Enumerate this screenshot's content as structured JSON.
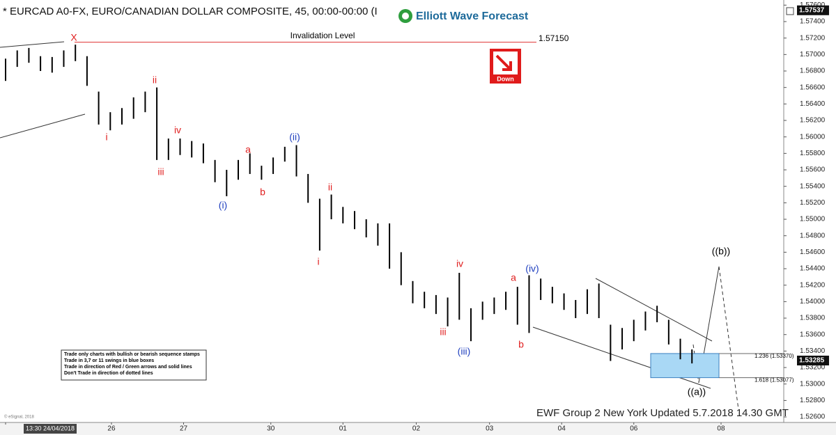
{
  "header": {
    "title": "* EURCAD A0-FX, EURO/CANADIAN DOLLAR COMPOSITE, 45, 00:00-00:00 (I",
    "logo": "Elliott Wave Forecast"
  },
  "chart_data": {
    "type": "hilo",
    "color": "#000000",
    "x": [
      0,
      1,
      2,
      3,
      4,
      5,
      6,
      7,
      8,
      9,
      10,
      11,
      12,
      13,
      14,
      15,
      16,
      17,
      18,
      19,
      20,
      21,
      22,
      23,
      24,
      25,
      26,
      27,
      28,
      29,
      30,
      31,
      32,
      33,
      34,
      35,
      36,
      37,
      38,
      39,
      40,
      41,
      42,
      43,
      44,
      45,
      46,
      47,
      48,
      49,
      50,
      51,
      52,
      53,
      54,
      55,
      56,
      57,
      58,
      59
    ],
    "high": [
      1.5695,
      1.5705,
      1.5708,
      1.5698,
      1.5697,
      1.5705,
      1.5712,
      1.5698,
      1.5655,
      1.563,
      1.5635,
      1.5648,
      1.5655,
      1.566,
      1.5598,
      1.5598,
      1.5595,
      1.5592,
      1.5572,
      1.556,
      1.5572,
      1.558,
      1.5565,
      1.5575,
      1.5588,
      1.559,
      1.5555,
      1.5525,
      1.553,
      1.5515,
      1.551,
      1.55,
      1.5495,
      1.5495,
      1.546,
      1.5425,
      1.5412,
      1.5408,
      1.5405,
      1.5435,
      1.5392,
      1.54,
      1.5405,
      1.5412,
      1.5418,
      1.5432,
      1.5428,
      1.5418,
      1.541,
      1.5402,
      1.5415,
      1.5422,
      1.5372,
      1.5368,
      1.5378,
      1.5388,
      1.5395,
      1.5378,
      1.5355,
      1.5342
    ],
    "low": [
      1.5668,
      1.5685,
      1.569,
      1.568,
      1.5678,
      1.5685,
      1.5692,
      1.5662,
      1.5615,
      1.5608,
      1.5615,
      1.5622,
      1.563,
      1.5572,
      1.5572,
      1.5578,
      1.5575,
      1.5568,
      1.5545,
      1.5528,
      1.5548,
      1.5555,
      1.5548,
      1.5555,
      1.557,
      1.5552,
      1.552,
      1.5462,
      1.55,
      1.5495,
      1.5488,
      1.5478,
      1.5468,
      1.544,
      1.542,
      1.5398,
      1.5392,
      1.5385,
      1.537,
      1.5378,
      1.5352,
      1.5378,
      1.5385,
      1.539,
      1.5372,
      1.5362,
      1.5402,
      1.5398,
      1.539,
      1.538,
      1.5385,
      1.538,
      1.5328,
      1.5342,
      1.5352,
      1.5365,
      1.5375,
      1.5348,
      1.533,
      1.5325
    ],
    "xlim": [
      -0.48,
      66.89
    ],
    "xticks": [
      {
        "value": 0,
        "label": "13:30 24/04/2018"
      },
      {
        "value": 9.1,
        "label": "26"
      },
      {
        "value": 15.3,
        "label": "27"
      },
      {
        "value": 22.8,
        "label": "30"
      },
      {
        "value": 29.0,
        "label": "01"
      },
      {
        "value": 35.3,
        "label": "02"
      },
      {
        "value": 41.6,
        "label": "03"
      },
      {
        "value": 47.8,
        "label": "04"
      },
      {
        "value": 54.0,
        "label": "06"
      },
      {
        "value": 61.5,
        "label": "08"
      }
    ],
    "ylim": [
      1.52533,
      1.57662
    ],
    "yticks": [
      {
        "value": 1.576,
        "label": "1.57600"
      },
      {
        "value": 1.574,
        "label": "1.57400"
      },
      {
        "value": 1.572,
        "label": "1.57200"
      },
      {
        "value": 1.57,
        "label": "1.57000"
      },
      {
        "value": 1.568,
        "label": "1.56800"
      },
      {
        "value": 1.566,
        "label": "1.56600"
      },
      {
        "value": 1.564,
        "label": "1.56400"
      },
      {
        "value": 1.562,
        "label": "1.56200"
      },
      {
        "value": 1.56,
        "label": "1.56000"
      },
      {
        "value": 1.558,
        "label": "1.55800"
      },
      {
        "value": 1.556,
        "label": "1.55600"
      },
      {
        "value": 1.554,
        "label": "1.55400"
      },
      {
        "value": 1.552,
        "label": "1.55200"
      },
      {
        "value": 1.55,
        "label": "1.55000"
      },
      {
        "value": 1.548,
        "label": "1.54800"
      },
      {
        "value": 1.546,
        "label": "1.54600"
      },
      {
        "value": 1.544,
        "label": "1.54400"
      },
      {
        "value": 1.542,
        "label": "1.54200"
      },
      {
        "value": 1.54,
        "label": "1.54000"
      },
      {
        "value": 1.538,
        "label": "1.53800"
      },
      {
        "value": 1.536,
        "label": "1.53600"
      },
      {
        "value": 1.534,
        "label": "1.53400"
      },
      {
        "value": 1.532,
        "label": "1.53200"
      },
      {
        "value": 1.53,
        "label": "1.53000"
      },
      {
        "value": 1.528,
        "label": "1.52800"
      },
      {
        "value": 1.526,
        "label": "1.52600"
      }
    ],
    "price_markers": [
      {
        "value": 1.57537,
        "label": "1.57537"
      },
      {
        "value": 1.53285,
        "label": "1.53285"
      }
    ],
    "invalidation": {
      "text": "Invalidation Level",
      "value": 1.5715,
      "label": "1.57150",
      "color": "#e03030"
    },
    "fib_levels": [
      {
        "value": 1.5337,
        "label": "1.236 (1.53370)"
      },
      {
        "value": 1.53077,
        "label": "1.618 (1.53077)"
      }
    ],
    "annotations": [
      {
        "text": "X",
        "color": "#e02020"
      },
      {
        "text": "i",
        "color": "#e02020"
      },
      {
        "text": "ii",
        "color": "#e02020"
      },
      {
        "text": "iii",
        "color": "#e02020"
      },
      {
        "text": "iv",
        "color": "#e02020"
      },
      {
        "text": "(i)",
        "color": "#1f3fbf"
      },
      {
        "text": "a",
        "color": "#e02020"
      },
      {
        "text": "b",
        "color": "#e02020"
      },
      {
        "text": "(ii)",
        "color": "#1f3fbf"
      },
      {
        "text": "ii",
        "color": "#e02020"
      },
      {
        "text": "i",
        "color": "#e02020"
      },
      {
        "text": "iii",
        "color": "#e02020"
      },
      {
        "text": "iv",
        "color": "#e02020"
      },
      {
        "text": "(iii)",
        "color": "#1f3fbf"
      },
      {
        "text": "a",
        "color": "#e02020"
      },
      {
        "text": "b",
        "color": "#e02020"
      },
      {
        "text": "(iv)",
        "color": "#1f3fbf"
      },
      {
        "text": "((a))",
        "color": "#000000"
      },
      {
        "text": "((b))",
        "color": "#000000"
      }
    ]
  },
  "badge": "Down",
  "notes": [
    "Trade only charts with bullish or bearish sequence stamps",
    "Trade in 3,7 or 11 swings in blue boxes",
    "Trade in direction of Red / Green arrows and solid lines",
    "Don't Trade in direction of dotted lines"
  ],
  "footer": "EWF Group 2 New York Updated 5.7.2018 14.30 GMT",
  "copyright": "© eSignal, 2018"
}
